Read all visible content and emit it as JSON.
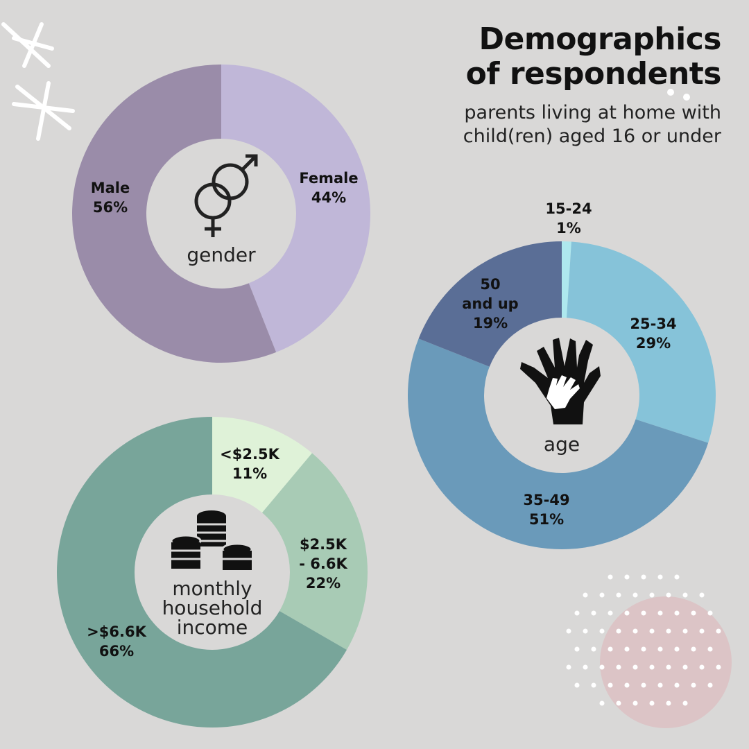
{
  "header": {
    "title_line1": "Demographics",
    "title_line2": "of respondents",
    "subtitle_line1": "parents living at home with",
    "subtitle_line2": "child(ren) aged 16 or under"
  },
  "chart_data": [
    {
      "type": "pie",
      "center_label": [
        "gender"
      ],
      "icon": "gender-icon",
      "categories": [
        "Female",
        "Male"
      ],
      "values": [
        44,
        56
      ],
      "value_labels": [
        "44%",
        "56%"
      ],
      "colors": [
        "#c0b7d8",
        "#9a8ca9"
      ]
    },
    {
      "type": "pie",
      "center_label": [
        "age"
      ],
      "icon": "hands-icon",
      "categories": [
        "15-24",
        "25-34",
        "35-49",
        "50 and up"
      ],
      "label_lines": [
        [
          "15-24"
        ],
        [
          "25-34"
        ],
        [
          "35-49"
        ],
        [
          "50",
          "and up"
        ]
      ],
      "values": [
        1,
        29,
        51,
        19
      ],
      "value_labels": [
        "1%",
        "29%",
        "51%",
        "19%"
      ],
      "colors": [
        "#aee8ee",
        "#86c3d9",
        "#6a9aba",
        "#5a6e96"
      ]
    },
    {
      "type": "pie",
      "center_label": [
        "monthly",
        "household",
        "income"
      ],
      "icon": "coins-icon",
      "categories": [
        "<$2.5K",
        "$2.5K - 6.6K",
        ">$6.6K"
      ],
      "label_lines": [
        [
          "<$2.5K"
        ],
        [
          "$2.5K",
          "- 6.6K"
        ],
        [
          ">$6.6K"
        ]
      ],
      "values": [
        11,
        22,
        66
      ],
      "value_labels": [
        "11%",
        "22%",
        "66%"
      ],
      "colors": [
        "#dff2d8",
        "#a8cbb5",
        "#78a59a"
      ]
    }
  ]
}
